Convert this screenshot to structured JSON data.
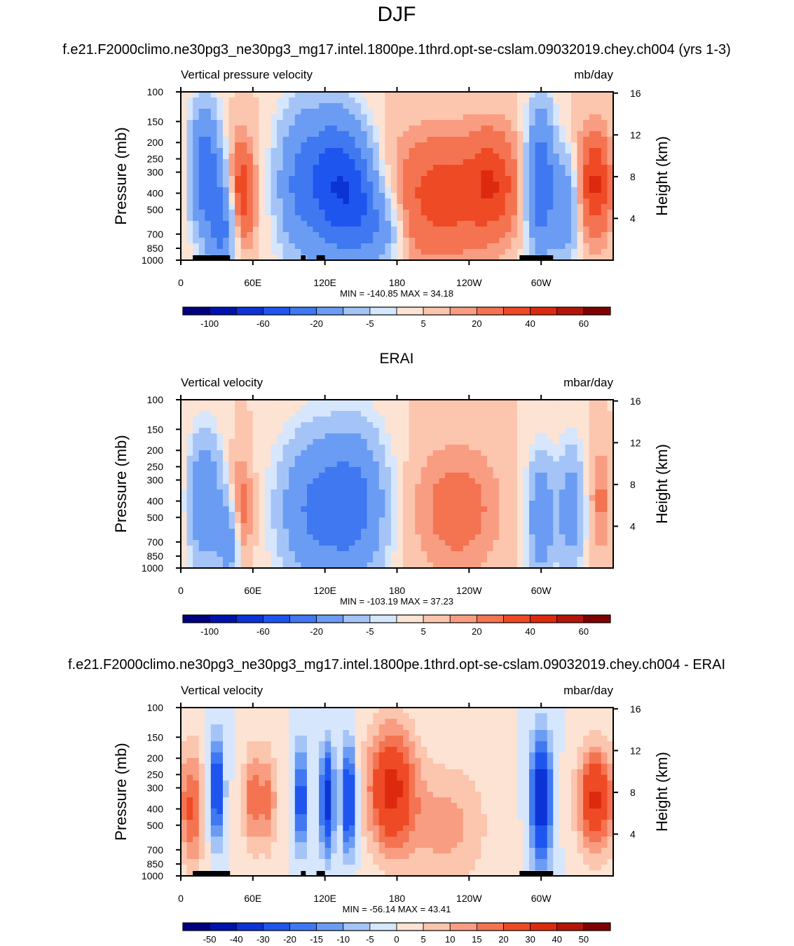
{
  "page": {
    "title": "DJF",
    "model_case": "f.e21.F2000climo.ne30pg3_ne30pg3_mg17.intel.1800pe.1thrd.opt-se-cslam.09032019.chey.ch004 (yrs 1-3)",
    "ref_title": "ERAI",
    "diff_title": "f.e21.F2000climo.ne30pg3_ne30pg3_mg17.intel.1800pe.1thrd.opt-se-cslam.09032019.chey.ch004 - ERAI"
  },
  "colors": {
    "abs_levels": [
      "#00007f",
      "#0012ad",
      "#0b33d6",
      "#1f55ef",
      "#3f78f1",
      "#6b9cf4",
      "#a4c4f8",
      "#d6e6fc",
      "#fde3d3",
      "#fcc5ad",
      "#f99d82",
      "#f47351",
      "#ee4a25",
      "#dd2a0e",
      "#b51509",
      "#7f0000"
    ],
    "diff_levels": [
      "#00007f",
      "#0012ad",
      "#0b33d6",
      "#1f55ef",
      "#3f78f1",
      "#6b9cf4",
      "#a4c4f8",
      "#d6e6fc",
      "#fde3d3",
      "#fcc5ad",
      "#f99d82",
      "#f47351",
      "#ee4a25",
      "#dd2a0e",
      "#b51509",
      "#7f0000"
    ],
    "land": "#000000"
  },
  "chart_data": [
    {
      "type": "heatmap",
      "panel": "model",
      "left_label": "Vertical pressure velocity",
      "right_label": "mb/day",
      "ylabel": "Pressure (mb)",
      "y2label": "Height (km)",
      "x_ticks": [
        "0",
        "60E",
        "120E",
        "180",
        "120W",
        "60W"
      ],
      "x_tick_values": [
        0,
        60,
        120,
        180,
        240,
        300
      ],
      "xlim": [
        0,
        360
      ],
      "y_ticks": [
        "100",
        "150",
        "200",
        "250",
        "300",
        "400",
        "500",
        "700",
        "850",
        "1000"
      ],
      "y_tick_values": [
        100,
        150,
        200,
        250,
        300,
        400,
        500,
        700,
        850,
        1000
      ],
      "ylim": [
        1000,
        100
      ],
      "height_ticks": [
        "16",
        "12",
        "8",
        "4"
      ],
      "height_tick_values": [
        16,
        12,
        8,
        4
      ],
      "stats": "MIN = -140.85  MAX =  34.18",
      "colorbar_labels": [
        "-100",
        "-60",
        "-20",
        "-5",
        "5",
        "20",
        "40",
        "60"
      ],
      "features": [
        {
          "lon": 20,
          "p": 300,
          "value": -55,
          "wlon": 9,
          "wp": 0.6
        },
        {
          "lon": 35,
          "p": 650,
          "value": -45,
          "wlon": 8,
          "wp": 0.5
        },
        {
          "lon": 50,
          "p": 400,
          "value": 30,
          "wlon": 8,
          "wp": 0.5
        },
        {
          "lon": 100,
          "p": 350,
          "value": -45,
          "wlon": 14,
          "wp": 0.7
        },
        {
          "lon": 125,
          "p": 350,
          "value": -55,
          "wlon": 12,
          "wp": 0.7
        },
        {
          "lon": 145,
          "p": 400,
          "value": -60,
          "wlon": 12,
          "wp": 0.6
        },
        {
          "lon": 165,
          "p": 650,
          "value": -30,
          "wlon": 12,
          "wp": 0.4
        },
        {
          "lon": 215,
          "p": 420,
          "value": 25,
          "wlon": 28,
          "wp": 0.6
        },
        {
          "lon": 260,
          "p": 350,
          "value": 25,
          "wlon": 15,
          "wp": 0.5
        },
        {
          "lon": 300,
          "p": 350,
          "value": -60,
          "wlon": 8,
          "wp": 0.7
        },
        {
          "lon": 320,
          "p": 500,
          "value": -35,
          "wlon": 7,
          "wp": 0.5
        },
        {
          "lon": 345,
          "p": 350,
          "value": 32,
          "wlon": 10,
          "wp": 0.5
        }
      ],
      "land": [
        [
          10,
          41
        ],
        [
          100,
          104
        ],
        [
          113,
          120
        ],
        [
          282,
          310
        ]
      ]
    },
    {
      "type": "heatmap",
      "panel": "reference",
      "left_label": "Vertical velocity",
      "right_label": "mbar/day",
      "ylabel": "Pressure (mb)",
      "y2label": "Height (km)",
      "x_ticks": [
        "0",
        "60E",
        "120E",
        "180",
        "120W",
        "60W"
      ],
      "x_tick_values": [
        0,
        60,
        120,
        180,
        240,
        300
      ],
      "xlim": [
        0,
        360
      ],
      "y_ticks": [
        "100",
        "150",
        "200",
        "250",
        "300",
        "400",
        "500",
        "700",
        "850",
        "1000"
      ],
      "y_tick_values": [
        100,
        150,
        200,
        250,
        300,
        400,
        500,
        700,
        850,
        1000
      ],
      "ylim": [
        1000,
        100
      ],
      "height_ticks": [
        "16",
        "12",
        "8",
        "4"
      ],
      "height_tick_values": [
        16,
        12,
        8,
        4
      ],
      "stats": "MIN = -103.19  MAX =  37.23",
      "colorbar_labels": [
        "-100",
        "-60",
        "-20",
        "-5",
        "5",
        "20",
        "40",
        "60"
      ],
      "features": [
        {
          "lon": 20,
          "p": 400,
          "value": -40,
          "wlon": 10,
          "wp": 0.6
        },
        {
          "lon": 40,
          "p": 700,
          "value": -30,
          "wlon": 6,
          "wp": 0.4
        },
        {
          "lon": 50,
          "p": 450,
          "value": 15,
          "wlon": 7,
          "wp": 0.5
        },
        {
          "lon": 110,
          "p": 450,
          "value": -40,
          "wlon": 20,
          "wp": 0.7
        },
        {
          "lon": 145,
          "p": 420,
          "value": -45,
          "wlon": 18,
          "wp": 0.7
        },
        {
          "lon": 230,
          "p": 450,
          "value": 15,
          "wlon": 25,
          "wp": 0.6
        },
        {
          "lon": 300,
          "p": 500,
          "value": -35,
          "wlon": 8,
          "wp": 0.6
        },
        {
          "lon": 325,
          "p": 450,
          "value": -30,
          "wlon": 8,
          "wp": 0.6
        },
        {
          "lon": 350,
          "p": 400,
          "value": 12,
          "wlon": 8,
          "wp": 0.5
        }
      ],
      "land": []
    },
    {
      "type": "heatmap",
      "panel": "difference",
      "left_label": "Vertical velocity",
      "right_label": "mbar/day",
      "ylabel": "Pressure (mb)",
      "y2label": "Height (km)",
      "x_ticks": [
        "0",
        "60E",
        "120E",
        "180",
        "120W",
        "60W"
      ],
      "x_tick_values": [
        0,
        60,
        120,
        180,
        240,
        300
      ],
      "xlim": [
        0,
        360
      ],
      "y_ticks": [
        "100",
        "150",
        "200",
        "250",
        "300",
        "400",
        "500",
        "700",
        "850",
        "1000"
      ],
      "y_tick_values": [
        100,
        150,
        200,
        250,
        300,
        400,
        500,
        700,
        850,
        1000
      ],
      "ylim": [
        1000,
        100
      ],
      "height_ticks": [
        "16",
        "12",
        "8",
        "4"
      ],
      "height_tick_values": [
        16,
        12,
        8,
        4
      ],
      "stats": "MIN = -56.14  MAX =  43.41",
      "colorbar_labels": [
        "-50",
        "-40",
        "-30",
        "-20",
        "-15",
        "-10",
        "-5",
        "0",
        "5",
        "10",
        "15",
        "20",
        "30",
        "40",
        "50"
      ],
      "features": [
        {
          "lon": 10,
          "p": 400,
          "value": 20,
          "wlon": 6,
          "wp": 0.6
        },
        {
          "lon": 30,
          "p": 300,
          "value": -30,
          "wlon": 4,
          "wp": 0.5
        },
        {
          "lon": 60,
          "p": 350,
          "value": 18,
          "wlon": 6,
          "wp": 0.5
        },
        {
          "lon": 73,
          "p": 350,
          "value": 15,
          "wlon": 5,
          "wp": 0.5
        },
        {
          "lon": 100,
          "p": 350,
          "value": -30,
          "wlon": 3,
          "wp": 0.5
        },
        {
          "lon": 122,
          "p": 350,
          "value": -35,
          "wlon": 4,
          "wp": 0.5
        },
        {
          "lon": 140,
          "p": 350,
          "value": -35,
          "wlon": 4,
          "wp": 0.5
        },
        {
          "lon": 175,
          "p": 300,
          "value": 32,
          "wlon": 14,
          "wp": 0.6
        },
        {
          "lon": 220,
          "p": 500,
          "value": 12,
          "wlon": 25,
          "wp": 0.6
        },
        {
          "lon": 300,
          "p": 350,
          "value": -40,
          "wlon": 6,
          "wp": 0.6
        },
        {
          "lon": 345,
          "p": 350,
          "value": 32,
          "wlon": 10,
          "wp": 0.5
        }
      ],
      "land": [
        [
          10,
          41
        ],
        [
          100,
          104
        ],
        [
          113,
          120
        ],
        [
          282,
          310
        ]
      ]
    }
  ]
}
